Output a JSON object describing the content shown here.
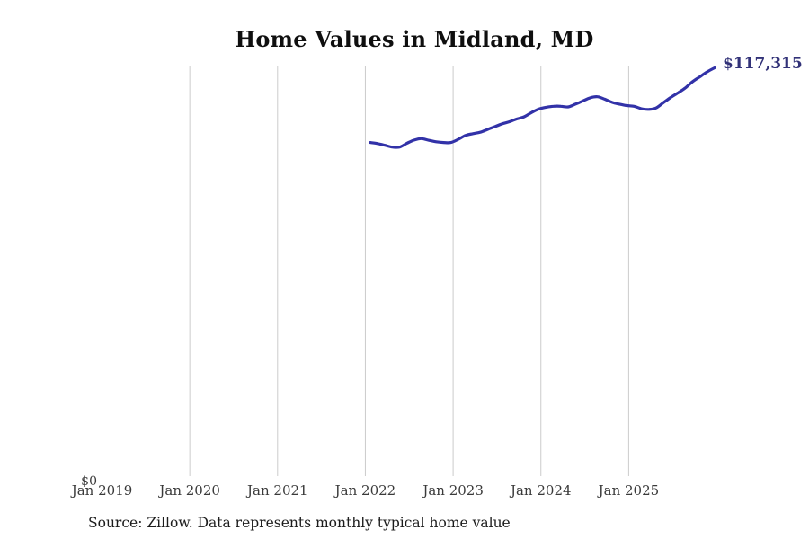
{
  "title": "Home Values in Midland, MD",
  "source_note": "Source: Zillow. Data represents monthly typical home value",
  "colors": {
    "background": "#ffffff",
    "line": "#3232a8",
    "end_label_text": "#323278",
    "gridline": "#cccccc",
    "axis_text": "#3a3a3a",
    "title_text": "#0f0f0f"
  },
  "chart_data": {
    "type": "line",
    "title": "Home Values in Midland, MD",
    "grid": "vertical",
    "legend": "none",
    "end_label": "$117,315",
    "end_value": 117315,
    "y_axis": {
      "tick_labels": [
        "$0"
      ],
      "min": 0,
      "unit": "USD"
    },
    "x_axis": {
      "tick_labels": [
        "Jan 2019",
        "Jan 2020",
        "Jan 2021",
        "Jan 2022",
        "Jan 2023",
        "Jan 2024",
        "Jan 2025"
      ],
      "gridline_labels": [
        "Jan 2020",
        "Jan 2021",
        "Jan 2022",
        "Jan 2023",
        "Jan 2024",
        "Jan 2025"
      ]
    },
    "series": [
      {
        "name": "Monthly typical home value",
        "frequency": "monthly",
        "start_month": "2022-01",
        "end_month": "2025-12",
        "months": [
          "2022-01",
          "2022-02",
          "2022-03",
          "2022-04",
          "2022-05",
          "2022-06",
          "2022-07",
          "2022-08",
          "2022-09",
          "2022-10",
          "2022-11",
          "2022-12",
          "2023-01",
          "2023-02",
          "2023-03",
          "2023-04",
          "2023-05",
          "2023-06",
          "2023-07",
          "2023-08",
          "2023-09",
          "2023-10",
          "2023-11",
          "2023-12",
          "2024-01",
          "2024-02",
          "2024-03",
          "2024-04",
          "2024-05",
          "2024-06",
          "2024-07",
          "2024-08",
          "2024-09",
          "2024-10",
          "2024-11",
          "2024-12",
          "2025-01",
          "2025-02",
          "2025-03",
          "2025-04",
          "2025-05",
          "2025-06",
          "2025-07",
          "2025-08",
          "2025-09",
          "2025-10",
          "2025-11",
          "2025-12"
        ],
        "values": [
          96100,
          95800,
          95300,
          94800,
          94800,
          95900,
          96800,
          97200,
          96700,
          96300,
          96100,
          96100,
          97000,
          98100,
          98600,
          99000,
          99800,
          100600,
          101400,
          102000,
          102800,
          103400,
          104600,
          105600,
          106100,
          106400,
          106400,
          106200,
          107000,
          107900,
          108800,
          109100,
          108400,
          107500,
          107000,
          106600,
          106400,
          105700,
          105500,
          105900,
          107400,
          108900,
          110200,
          111600,
          113400,
          114800,
          116200,
          117315
        ]
      }
    ]
  }
}
